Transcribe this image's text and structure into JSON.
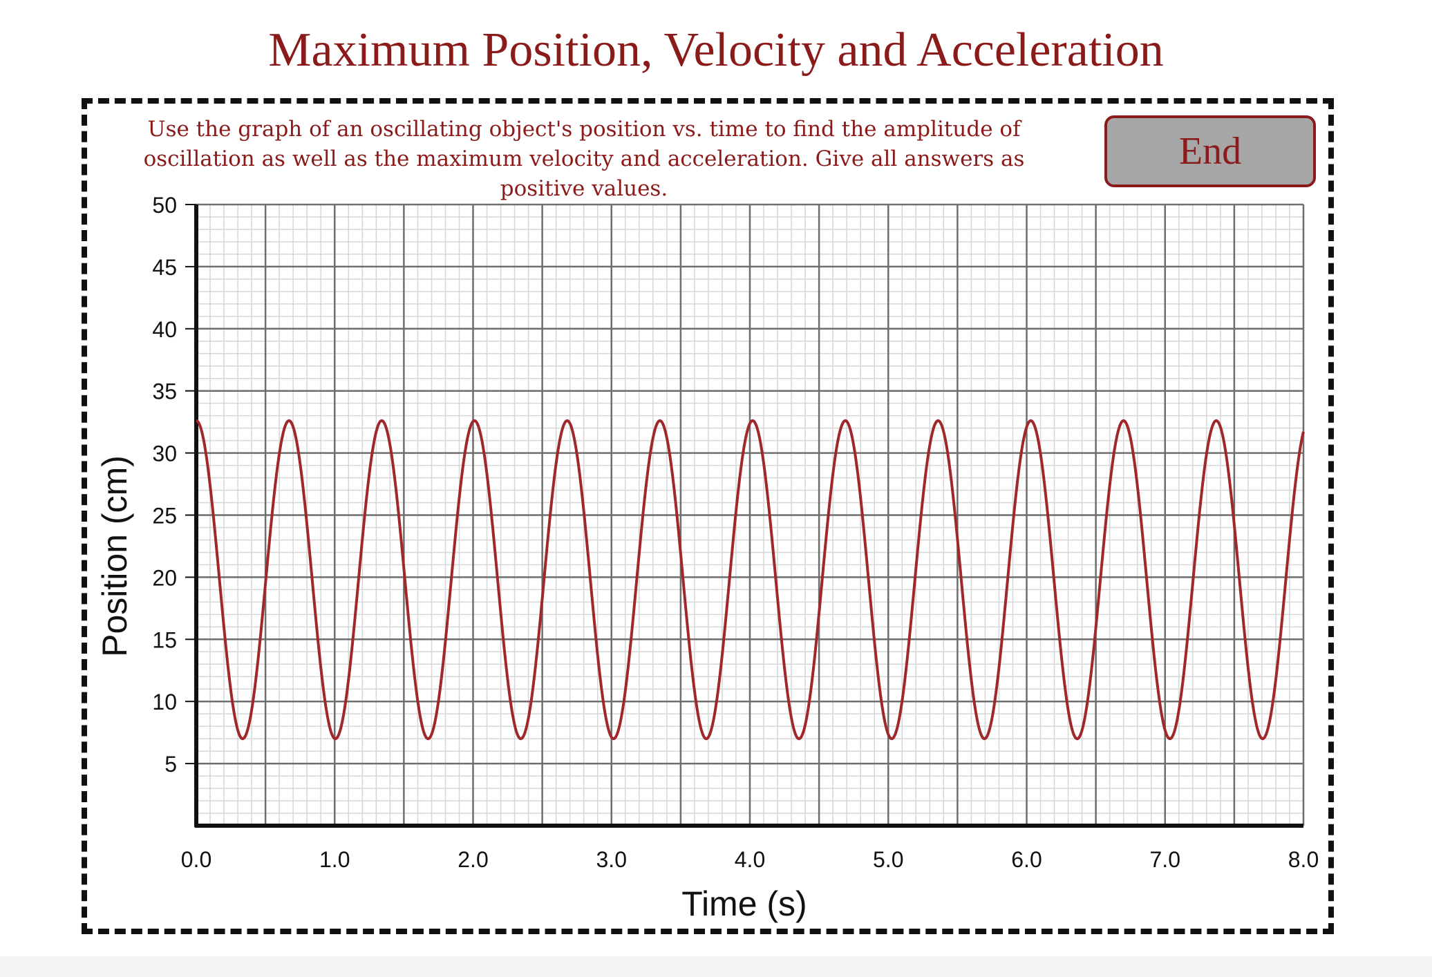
{
  "page": {
    "title": "Maximum Position, Velocity and Acceleration",
    "instructions": "Use the graph of an oscillating object's position vs. time to find the amplitude of oscillation as well as the maximum velocity and acceleration. Give all answers as positive values.",
    "end_label": "End"
  },
  "colors": {
    "accent": "#8b1a1a",
    "curve": "#a0282a",
    "button_bg": "#a6a6a6"
  },
  "chart_data": {
    "type": "line",
    "title": "",
    "xlabel": "Time (s)",
    "ylabel": "Position (cm)",
    "xlim": [
      0,
      8
    ],
    "ylim": [
      0,
      50
    ],
    "xticks": [
      "0.0",
      "1.0",
      "2.0",
      "3.0",
      "4.0",
      "5.0",
      "6.0",
      "7.0",
      "8.0"
    ],
    "yticks": [
      "5",
      "10",
      "15",
      "20",
      "25",
      "30",
      "35",
      "40",
      "45",
      "50"
    ],
    "grid": true,
    "series": [
      {
        "equation": "x(t) = 19.8 + 12.8 cos(2π t / 0.67)",
        "center": 19.8,
        "amplitude": 12.8,
        "period": 0.67,
        "max": 32.6,
        "min": 7.0
      }
    ]
  }
}
